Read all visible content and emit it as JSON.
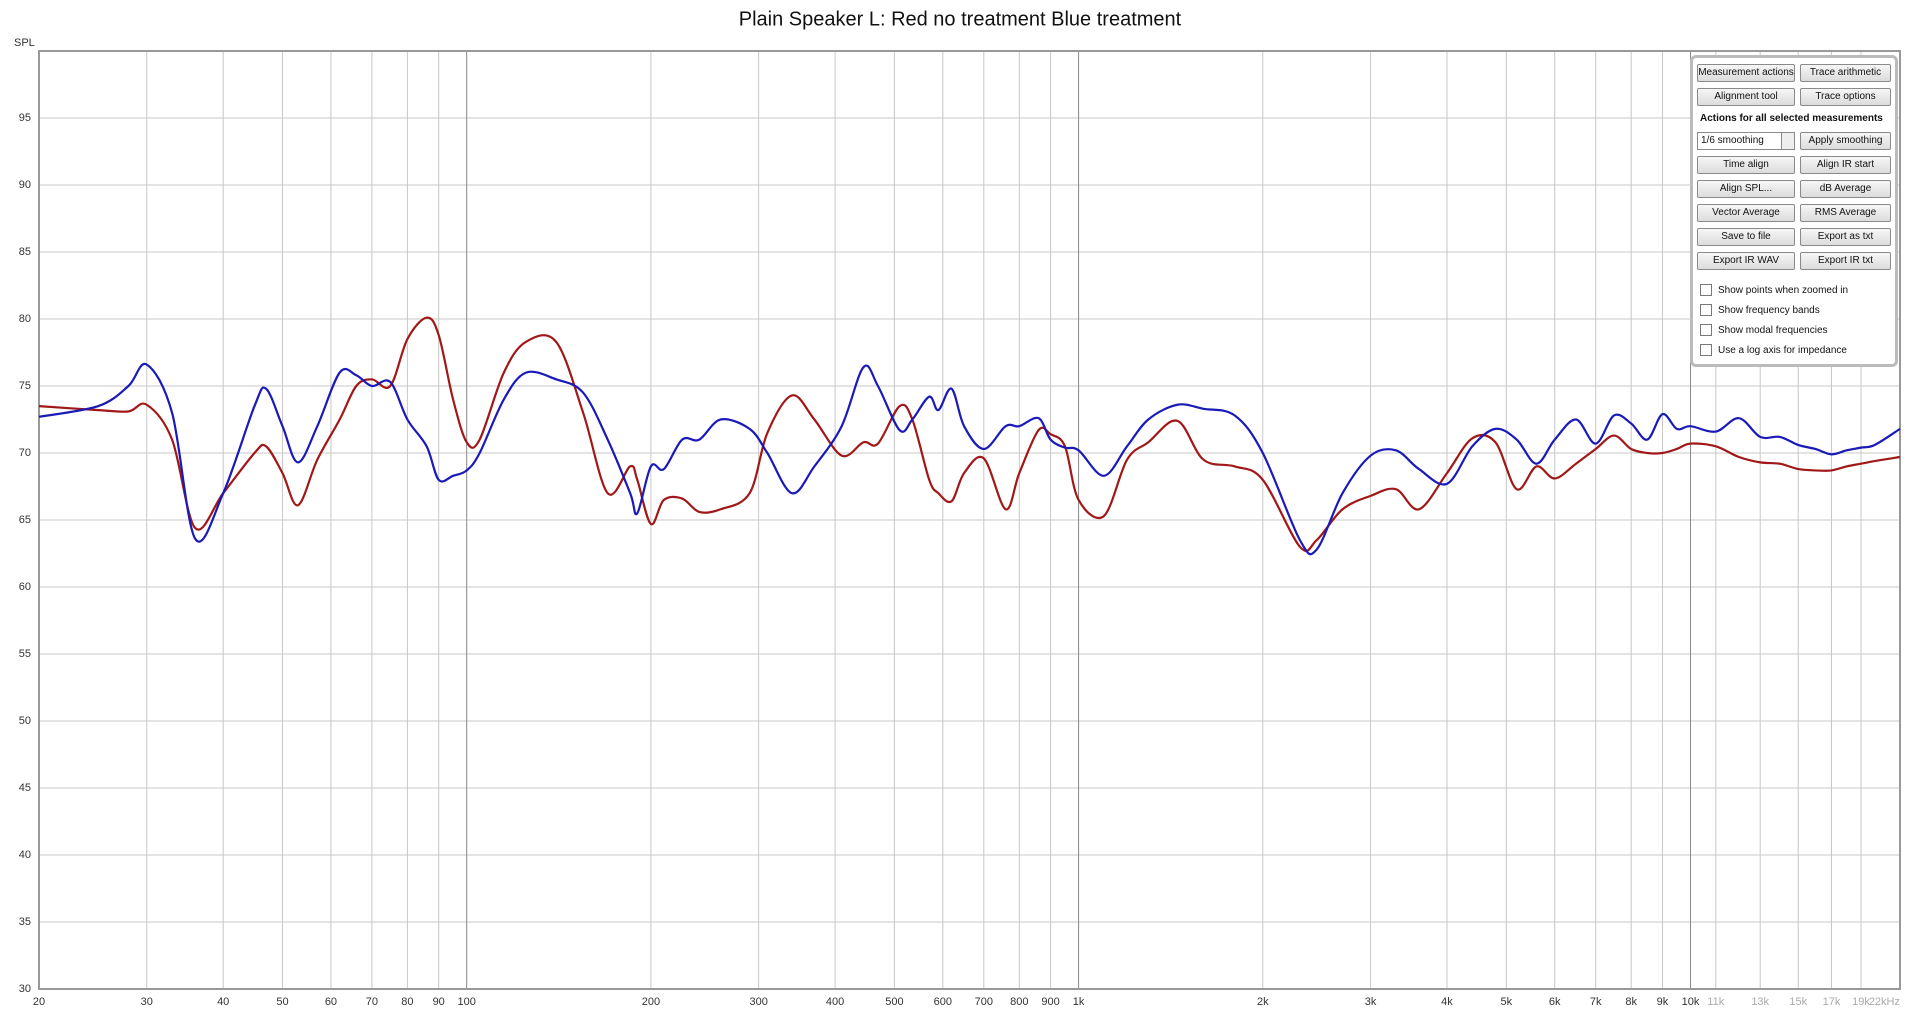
{
  "chart_data": {
    "type": "line",
    "title": "Plain Speaker L: Red no treatment Blue treatment",
    "y_label": "SPL",
    "xscale": "log",
    "grid": true,
    "xlim": [
      20,
      22000
    ],
    "ylim": [
      30,
      100
    ],
    "yticks": [
      30,
      35,
      40,
      45,
      50,
      55,
      60,
      65,
      70,
      75,
      80,
      85,
      90,
      95
    ],
    "xticks": [
      20,
      30,
      40,
      50,
      60,
      70,
      80,
      90,
      100,
      200,
      300,
      400,
      500,
      600,
      700,
      800,
      900,
      {
        "value": 1000,
        "label": "1k"
      },
      {
        "value": 2000,
        "label": "2k"
      },
      {
        "value": 3000,
        "label": "3k"
      },
      {
        "value": 4000,
        "label": "4k"
      },
      {
        "value": 5000,
        "label": "5k"
      },
      {
        "value": 6000,
        "label": "6k"
      },
      {
        "value": 7000,
        "label": "7k"
      },
      {
        "value": 8000,
        "label": "8k"
      },
      {
        "value": 9000,
        "label": "9k"
      },
      {
        "value": 10000,
        "label": "10k"
      },
      {
        "value": 11000,
        "label": "11k"
      },
      {
        "value": 13000,
        "label": "13k"
      },
      {
        "value": 15000,
        "label": "15k"
      },
      {
        "value": 17000,
        "label": "17k"
      },
      {
        "value": 19000,
        "label": "19k"
      },
      {
        "value": 22000,
        "label": "22kHz"
      }
    ],
    "x": [
      20,
      25,
      28,
      30,
      33,
      36,
      40,
      45,
      47,
      50,
      53,
      57,
      62,
      66,
      70,
      75,
      80,
      86,
      90,
      95,
      100,
      105,
      115,
      125,
      140,
      155,
      170,
      185,
      190,
      200,
      210,
      225,
      240,
      260,
      290,
      310,
      340,
      370,
      410,
      445,
      470,
      510,
      535,
      570,
      590,
      620,
      650,
      700,
      760,
      800,
      860,
      900,
      950,
      1000,
      1100,
      1200,
      1300,
      1450,
      1600,
      1800,
      2000,
      2300,
      2450,
      2700,
      3000,
      3300,
      3600,
      4000,
      4400,
      4800,
      5200,
      5600,
      6000,
      6500,
      7000,
      7500,
      8000,
      8500,
      9000,
      9500,
      10000,
      11000,
      12000,
      13000,
      14000,
      15000,
      16000,
      17000,
      18000,
      19000,
      20000,
      22000
    ],
    "series": [
      {
        "color": "#a01818",
        "values": [
          73.5,
          73.2,
          73.1,
          73.6,
          71,
          64.4,
          67,
          70,
          70.5,
          68.5,
          66.1,
          69.5,
          72.5,
          75,
          75.5,
          75,
          78.5,
          80.1,
          78.8,
          74,
          70.8,
          71,
          76,
          78.3,
          78.3,
          73,
          67,
          69,
          68,
          64.7,
          66.5,
          66.6,
          65.6,
          65.8,
          67,
          71.5,
          74.3,
          72.5,
          69.8,
          70.8,
          70.7,
          73.5,
          72.5,
          68,
          67,
          66.4,
          68.5,
          69.6,
          65.8,
          68.5,
          71.7,
          71.4,
          70.5,
          66.5,
          65.3,
          69.5,
          70.8,
          72.4,
          69.5,
          69,
          68,
          63,
          63.5,
          65.8,
          66.8,
          67.3,
          65.8,
          68.5,
          71.1,
          70.8,
          67.3,
          69,
          68.1,
          69.2,
          70.3,
          71.3,
          70.3,
          70,
          70,
          70.3,
          70.7,
          70.5,
          69.7,
          69.3,
          69.2,
          68.8,
          68.7,
          68.7,
          69,
          69.2,
          69.4,
          69.7
        ]
      },
      {
        "color": "#1a1ab8",
        "values": [
          72.7,
          73.5,
          75,
          76.6,
          73,
          63.6,
          67,
          73.5,
          74.8,
          72,
          69.3,
          72,
          76,
          75.8,
          75,
          75.3,
          72.5,
          70.5,
          68,
          68.3,
          68.7,
          70,
          74,
          76,
          75.5,
          74.5,
          71,
          67,
          65.5,
          69,
          68.8,
          71,
          71,
          72.5,
          71.8,
          70,
          67,
          69,
          72,
          76.4,
          75,
          71.7,
          72.5,
          74.2,
          73.2,
          74.8,
          72,
          70.3,
          72,
          72,
          72.6,
          71,
          70.4,
          70.2,
          68.3,
          70.5,
          72.5,
          73.6,
          73.3,
          72.8,
          70,
          63.5,
          62.8,
          67,
          69.8,
          70.2,
          68.8,
          67.7,
          70.5,
          71.8,
          71,
          69.2,
          71,
          72.5,
          70.7,
          72.8,
          72.2,
          71,
          72.9,
          71.8,
          72,
          71.6,
          72.6,
          71.2,
          71.2,
          70.6,
          70.3,
          69.9,
          70.2,
          70.4,
          70.6,
          71.8
        ]
      }
    ]
  },
  "panel": {
    "top_buttons": [
      "Measurement actions",
      "Trace arithmetic",
      "Alignment tool",
      "Trace options"
    ],
    "section_title": "Actions for all selected measurements",
    "smoothing_select": "1/6 smoothing",
    "buttons": [
      "Apply smoothing",
      "Time align",
      "Align IR start",
      "Align SPL...",
      "dB Average",
      "Vector Average",
      "RMS Average",
      "Save to file",
      "Export as txt",
      "Export IR WAV",
      "Export IR txt"
    ],
    "checkboxes": [
      "Show points when zoomed in",
      "Show frequency bands",
      "Show modal frequencies",
      "Use a log axis for impedance"
    ]
  }
}
